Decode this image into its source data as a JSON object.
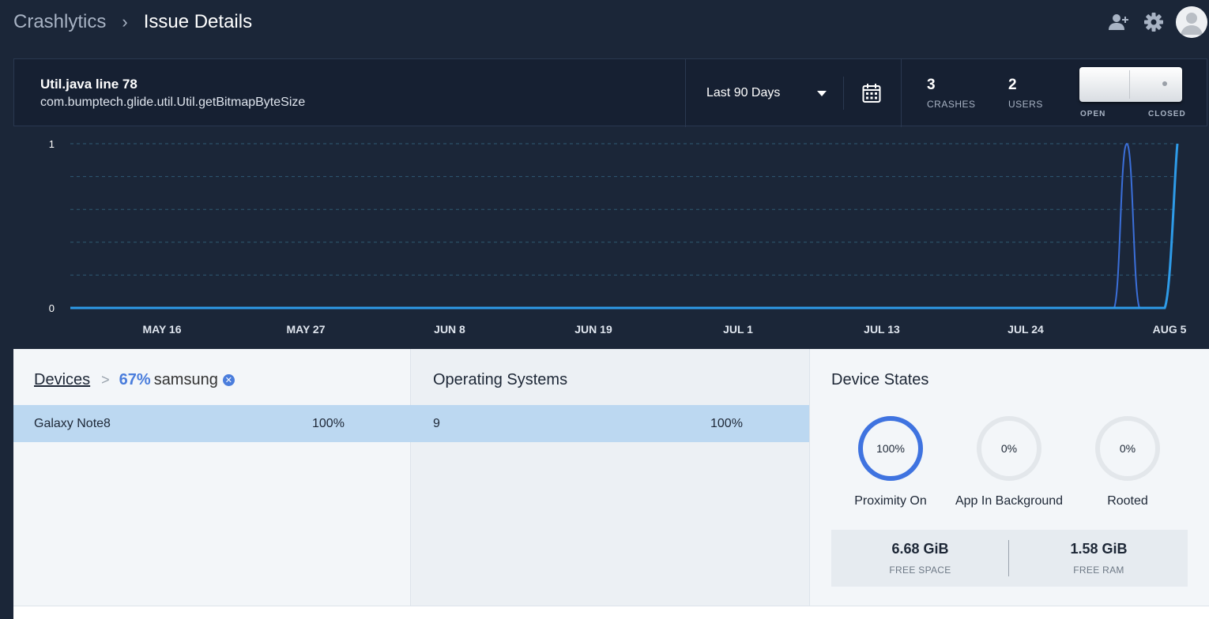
{
  "breadcrumb": {
    "root": "Crashlytics",
    "separator": "›",
    "current": "Issue Details"
  },
  "topbar_icons": [
    "add-user-icon",
    "gear-icon",
    "avatar"
  ],
  "issue": {
    "title": "Util.java line 78",
    "subtitle": "com.bumptech.glide.util.Util.getBitmapByteSize",
    "range_label": "Last 90 Days",
    "crashes_value": "3",
    "crashes_label": "CRASHES",
    "users_value": "2",
    "users_label": "USERS",
    "toggle_open": "OPEN",
    "toggle_closed": "CLOSED"
  },
  "chart_data": {
    "type": "line",
    "title": "",
    "xlabel": "",
    "ylabel": "",
    "ylim": [
      0,
      1
    ],
    "yticks": [
      "1",
      "0"
    ],
    "xticks": [
      "MAY 16",
      "MAY 27",
      "JUN 8",
      "JUN 19",
      "JUL 1",
      "JUL 13",
      "JUL 24",
      "AUG 5"
    ],
    "grid": true,
    "series": [
      {
        "color": "#3b6fd9",
        "peak_date": "AUG 1",
        "peak_value": 1
      },
      {
        "color": "#2e9be8",
        "peak_date": "AUG 5",
        "peak_value": 1
      }
    ]
  },
  "devices": {
    "title": "Devices",
    "separator": ">",
    "filter_pct": "67%",
    "filter_name": "samsung",
    "rows": [
      {
        "name": "Galaxy Note8",
        "value": "100%"
      }
    ]
  },
  "os": {
    "title": "Operating Systems",
    "rows": [
      {
        "name": "9",
        "value": "100%"
      }
    ]
  },
  "device_states": {
    "title": "Device States",
    "rings": [
      {
        "pct": "100%",
        "fraction": 1.0,
        "label": "Proximity On"
      },
      {
        "pct": "0%",
        "fraction": 0.0,
        "label": "App In Background"
      },
      {
        "pct": "0%",
        "fraction": 0.0,
        "label": "Rooted"
      }
    ],
    "free_space_value": "6.68 GiB",
    "free_space_label": "FREE SPACE",
    "free_ram_value": "1.58 GiB",
    "free_ram_label": "FREE RAM"
  },
  "colors": {
    "ring_active": "#3f73e0",
    "ring_inactive": "#e3e7eb",
    "row_selected": "#bcd8f1"
  }
}
